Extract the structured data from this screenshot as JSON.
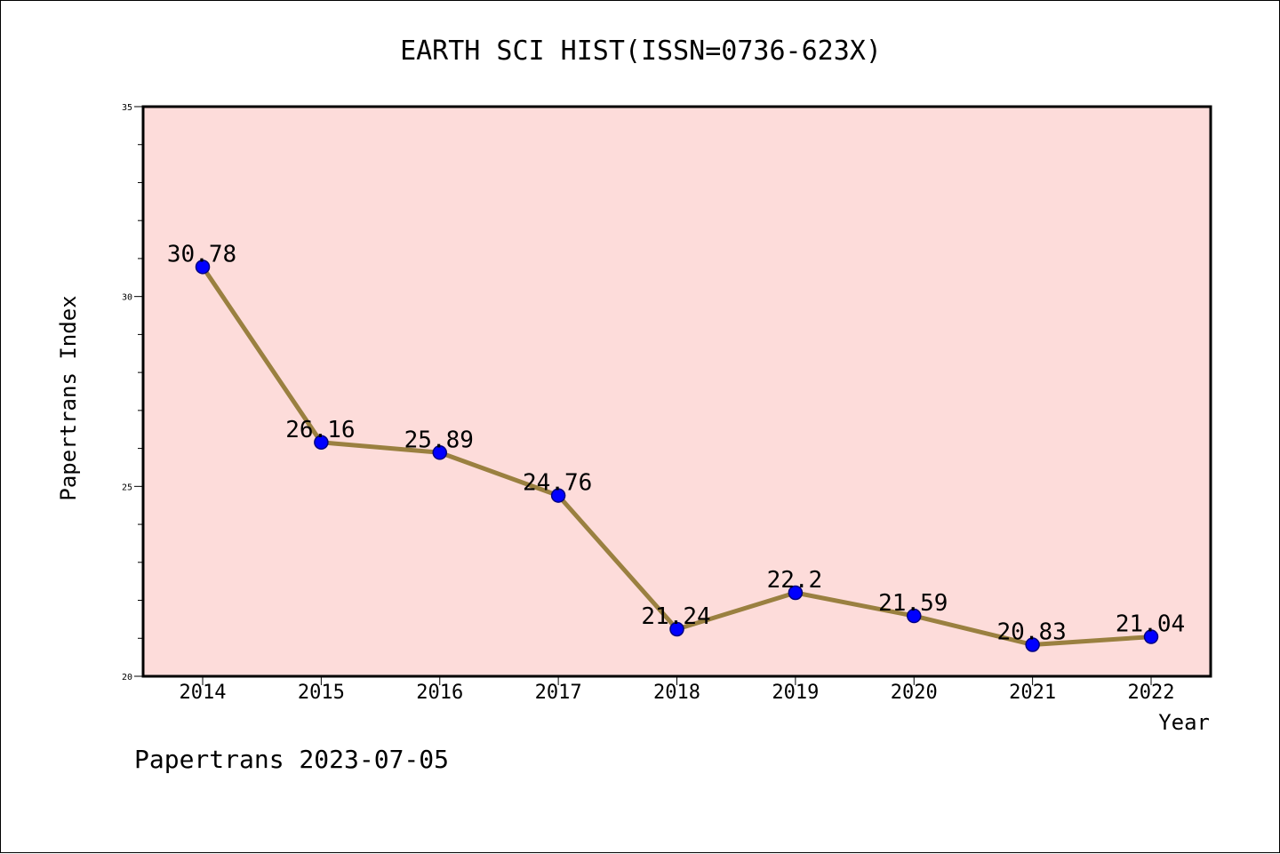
{
  "chart_data": {
    "type": "line",
    "title": "EARTH SCI HIST(ISSN=0736-623X)",
    "xlabel": "Year",
    "ylabel": "Papertrans Index",
    "categories": [
      "2014",
      "2015",
      "2016",
      "2017",
      "2018",
      "2019",
      "2020",
      "2021",
      "2022"
    ],
    "series": [
      {
        "values": [
          30.78,
          26.16,
          25.89,
          24.76,
          21.24,
          22.2,
          21.59,
          20.83,
          21.04
        ]
      }
    ],
    "data_labels": [
      "30.78",
      "26.16",
      "25.89",
      "24.76",
      "21.24",
      "22.2",
      "21.59",
      "20.83",
      "21.04"
    ],
    "ylim": [
      20,
      35
    ],
    "yticks": [
      20,
      25,
      30,
      35
    ],
    "y_minor_step": 1,
    "grid": false,
    "legend": "none",
    "colors": {
      "plot_background": "#FDDCDA",
      "line": "#9A8040",
      "marker": "#0000FF",
      "marker_edge": "#000080"
    }
  },
  "footer": {
    "source_text": "Papertrans 2023-07-05"
  }
}
